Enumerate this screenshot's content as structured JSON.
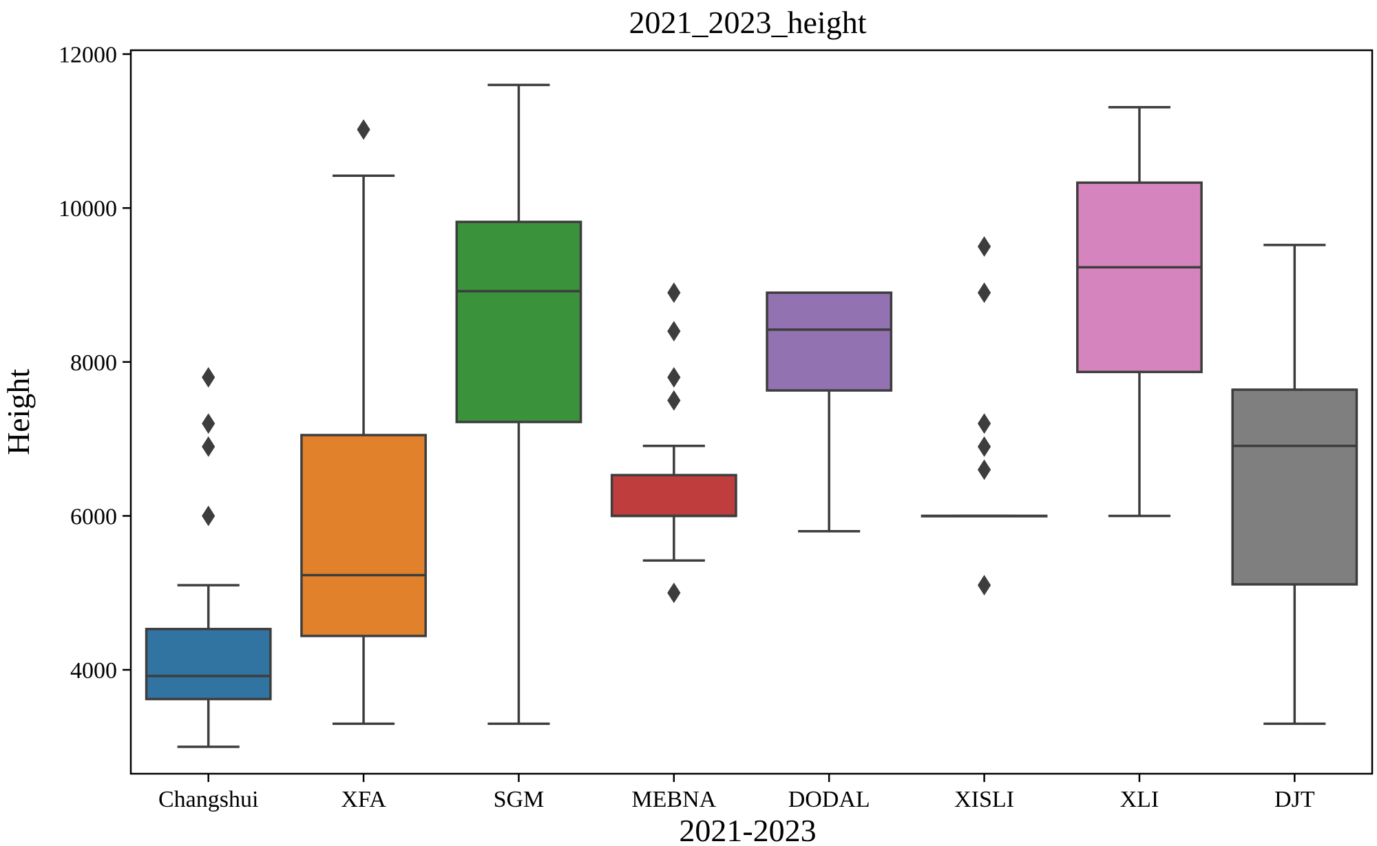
{
  "chart_data": {
    "type": "box",
    "title": "2021_2023_height",
    "xlabel": "2021-2023",
    "ylabel": "Height",
    "ylim": [
      2650,
      12050
    ],
    "yticks": [
      4000,
      6000,
      8000,
      10000,
      12000
    ],
    "yticklabels": [
      "4000",
      "6000",
      "8000",
      "10000",
      "12000"
    ],
    "categories": [
      "Changshui",
      "XFA",
      "SGM",
      "MEBNA",
      "DODAL",
      "XISLI",
      "XLI",
      "DJT"
    ],
    "boxes": [
      {
        "category": "Changshui",
        "color": "#3274a1",
        "whisker_low": 3000,
        "q1": 3620,
        "median": 3920,
        "q3": 4530,
        "whisker_high": 5100,
        "outliers": [
          6000,
          6900,
          7200,
          7800
        ]
      },
      {
        "category": "XFA",
        "color": "#e1812c",
        "whisker_low": 3300,
        "q1": 4440,
        "median": 5230,
        "q3": 7050,
        "whisker_high": 10420,
        "outliers": [
          11020
        ]
      },
      {
        "category": "SGM",
        "color": "#3a923a",
        "whisker_low": 3300,
        "q1": 7220,
        "median": 8920,
        "q3": 9820,
        "whisker_high": 11600,
        "outliers": []
      },
      {
        "category": "MEBNA",
        "color": "#c03d3e",
        "whisker_low": 5420,
        "q1": 6000,
        "median": 6000,
        "q3": 6530,
        "whisker_high": 6910,
        "outliers": [
          5000,
          7500,
          7800,
          8400,
          8900
        ]
      },
      {
        "category": "DODAL",
        "color": "#9372b2",
        "whisker_low": 5800,
        "q1": 7630,
        "median": 8420,
        "q3": 8900,
        "whisker_high": 8900,
        "outliers": []
      },
      {
        "category": "XISLI",
        "color": "#845b53",
        "whisker_low": 6000,
        "q1": 6000,
        "median": 6000,
        "q3": 6000,
        "whisker_high": 6000,
        "outliers": [
          5100,
          6600,
          6900,
          7200,
          8900,
          9500
        ]
      },
      {
        "category": "XLI",
        "color": "#d684bd",
        "whisker_low": 6000,
        "q1": 7870,
        "median": 9230,
        "q3": 10330,
        "whisker_high": 11310,
        "outliers": []
      },
      {
        "category": "DJT",
        "color": "#7f7f7f",
        "whisker_low": 3300,
        "q1": 5110,
        "median": 6910,
        "q3": 7640,
        "whisker_high": 9520,
        "outliers": []
      }
    ]
  }
}
